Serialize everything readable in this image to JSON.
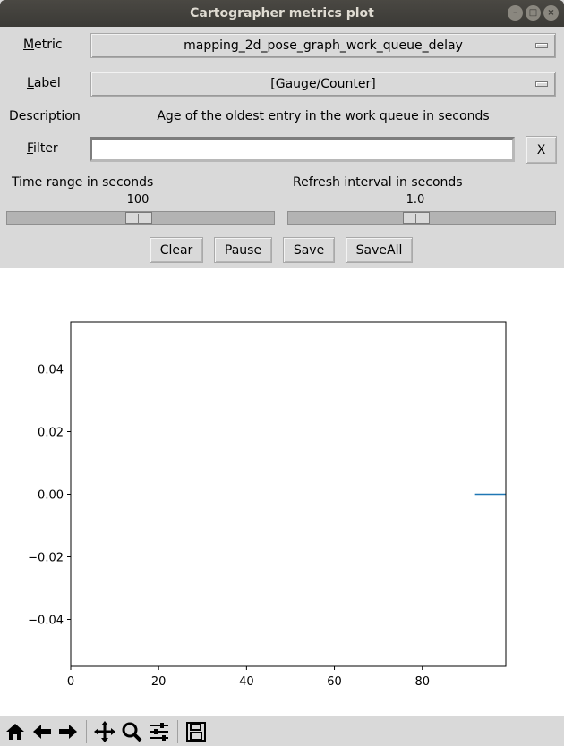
{
  "window": {
    "title": "Cartographer metrics plot"
  },
  "form": {
    "metric_label_pre": "",
    "metric_label_u": "M",
    "metric_label_post": "etric",
    "metric_value": "mapping_2d_pose_graph_work_queue_delay",
    "label_label_u": "L",
    "label_label_post": "abel",
    "label_value": "[Gauge/Counter]",
    "description_label": "Description",
    "description_value": "Age of the oldest entry in the work queue in seconds",
    "filter_label_u": "F",
    "filter_label_post": "ilter",
    "filter_value": "",
    "filter_clear": "X"
  },
  "sliders": {
    "time_range_label": "Time range in seconds",
    "time_range_value": "100",
    "refresh_label": "Refresh interval in seconds",
    "refresh_value": "1.0"
  },
  "buttons": {
    "clear": "Clear",
    "pause": "Pause",
    "save": "Save",
    "saveall": "SaveAll"
  },
  "chart_data": {
    "type": "line",
    "xlim": [
      0,
      99
    ],
    "ylim": [
      -0.055,
      0.055
    ],
    "x_ticks": [
      0,
      20,
      40,
      60,
      80
    ],
    "x_tick_labels": [
      "0",
      "20",
      "40",
      "60",
      "80"
    ],
    "y_ticks": [
      0.04,
      0.02,
      0.0,
      -0.02,
      -0.04
    ],
    "y_tick_labels": [
      "0.04",
      "0.02",
      "0.00",
      "−0.02",
      "−0.04"
    ],
    "series": [
      {
        "color": "#1f77b4",
        "x": [
          92,
          99
        ],
        "y": [
          0.0,
          0.0
        ]
      }
    ],
    "grid": false
  },
  "toolbar": {
    "icons": [
      "home-icon",
      "back-icon",
      "forward-icon",
      "pan-icon",
      "zoom-icon",
      "configure-subplots-icon",
      "save-figure-icon"
    ]
  }
}
